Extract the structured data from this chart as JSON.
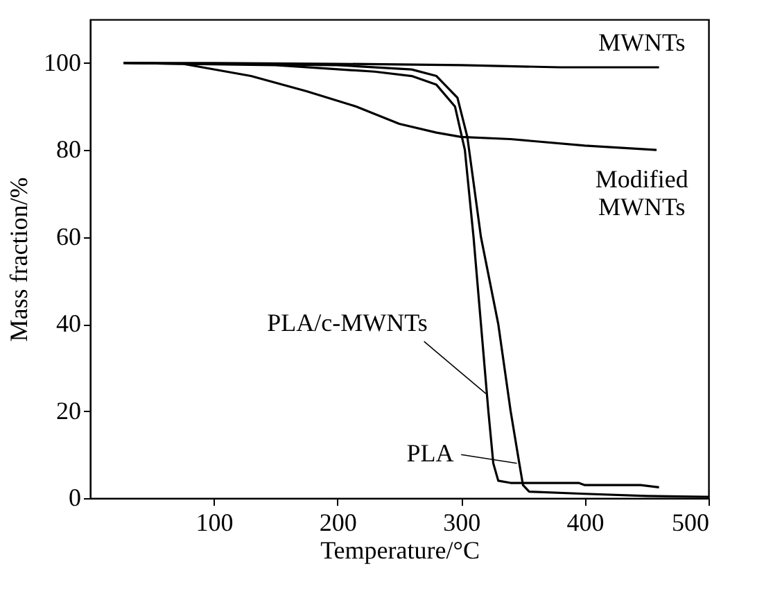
{
  "chart_data": {
    "type": "line",
    "xlabel": "Temperature/°C",
    "ylabel": "Mass fraction/%",
    "xlim": [
      0,
      500
    ],
    "xticks": [
      100,
      200,
      300,
      400,
      500
    ],
    "ylim": [
      0,
      110
    ],
    "yticks": [
      0,
      20,
      40,
      60,
      80,
      100
    ],
    "grid": false,
    "marker": "none",
    "line_style": "solid",
    "series": [
      {
        "name": "MWNTs",
        "color": "#000000",
        "x": [
          27,
          100,
          200,
          300,
          380,
          460
        ],
        "values": [
          100,
          100,
          99.8,
          99.5,
          99,
          99
        ]
      },
      {
        "name": "Modified MWNTs",
        "color": "#000000",
        "x": [
          27,
          75,
          130,
          175,
          215,
          250,
          280,
          300,
          340,
          400,
          458
        ],
        "values": [
          100,
          99.8,
          97,
          93.5,
          90,
          86,
          84,
          83,
          82.5,
          81,
          80
        ]
      },
      {
        "name": "PLA/c-MWNTs",
        "color": "#000000",
        "x": [
          27,
          150,
          230,
          260,
          280,
          295,
          303,
          310,
          316,
          322,
          326,
          330,
          340,
          395,
          400,
          445,
          460
        ],
        "values": [
          100,
          99.5,
          98,
          97,
          95,
          90,
          80,
          60,
          40,
          20,
          8,
          4,
          3.5,
          3.5,
          3,
          3,
          2.5
        ]
      },
      {
        "name": "PLA",
        "color": "#000000",
        "x": [
          27,
          200,
          260,
          280,
          297,
          305,
          316,
          330,
          340,
          347,
          350,
          355,
          400,
          450,
          500
        ],
        "values": [
          100,
          99.5,
          98.5,
          97,
          92,
          83,
          60,
          40,
          20,
          8,
          3,
          1.5,
          1,
          0.5,
          0.3
        ]
      }
    ]
  }
}
